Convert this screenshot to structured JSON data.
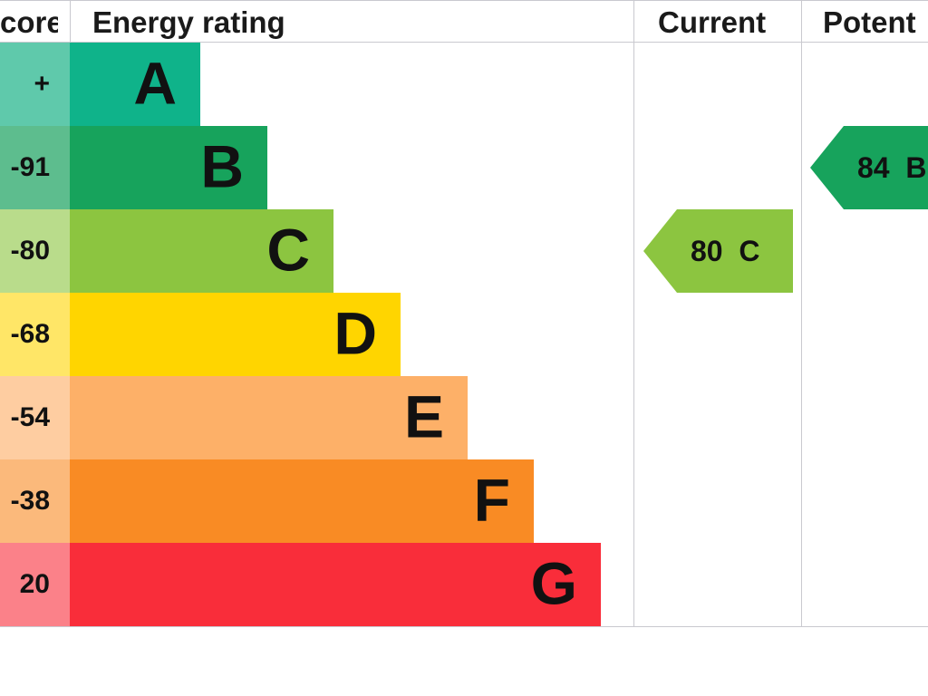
{
  "headers": {
    "score": "core",
    "rating": "Energy rating",
    "current": "Current",
    "potential": "Potent"
  },
  "chart_data": {
    "type": "bar",
    "categories": [
      "A",
      "B",
      "C",
      "D",
      "E",
      "F",
      "G"
    ],
    "score_labels": [
      "+",
      "-91",
      "-80",
      "-68",
      "-54",
      "-38",
      "20"
    ],
    "band_colors": [
      "#0fb38a",
      "#17a35c",
      "#8cc540",
      "#ffd500",
      "#fdb068",
      "#f98b24",
      "#f92d3a"
    ],
    "score_colors": [
      "#5fc9ab",
      "#5dbd8e",
      "#b9dc8b",
      "#ffe667",
      "#fecda1",
      "#fbb97b",
      "#fb8189"
    ],
    "current": {
      "value": 80,
      "band": "C",
      "label": "80  C",
      "color": "#8cc540"
    },
    "potential": {
      "value": 84,
      "band": "B",
      "label": "84  B",
      "color": "#17a35c"
    }
  }
}
